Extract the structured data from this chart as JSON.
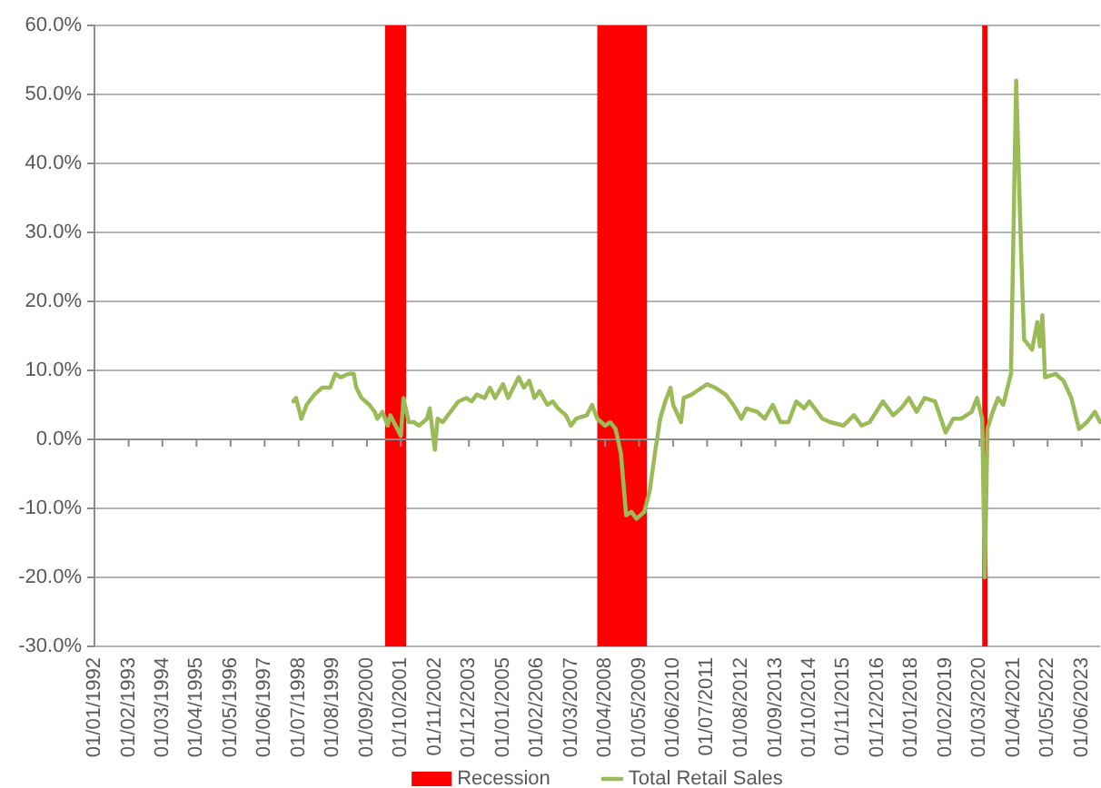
{
  "chart_data": {
    "type": "line",
    "x": [
      "1998-05",
      "1998-06",
      "1998-08",
      "1998-10",
      "1999-01",
      "1999-04",
      "1999-07",
      "1999-09",
      "1999-11",
      "2000-02",
      "2000-04",
      "2000-05",
      "2000-07",
      "2000-10",
      "2000-12",
      "2001-01",
      "2001-03",
      "2001-05",
      "2001-06",
      "2001-08",
      "2001-10",
      "2001-11",
      "2002-01",
      "2002-03",
      "2002-05",
      "2002-08",
      "2002-09",
      "2002-11",
      "2002-12",
      "2003-02",
      "2003-05",
      "2003-08",
      "2003-11",
      "2004-01",
      "2004-03",
      "2004-06",
      "2004-08",
      "2004-10",
      "2005-01",
      "2005-03",
      "2005-05",
      "2005-07",
      "2005-09",
      "2005-11",
      "2006-01",
      "2006-03",
      "2006-06",
      "2006-08",
      "2006-10",
      "2007-01",
      "2007-03",
      "2007-05",
      "2007-09",
      "2007-11",
      "2008-01",
      "2008-04",
      "2008-06",
      "2008-08",
      "2008-10",
      "2008-11",
      "2008-12",
      "2009-02",
      "2009-04",
      "2009-07",
      "2009-09",
      "2009-11",
      "2010-01",
      "2010-03",
      "2010-05",
      "2010-06",
      "2010-09",
      "2010-10",
      "2011-01",
      "2011-05",
      "2011-07",
      "2011-10",
      "2012-02",
      "2012-05",
      "2012-08",
      "2012-10",
      "2013-02",
      "2013-05",
      "2013-08",
      "2013-11",
      "2014-02",
      "2014-05",
      "2014-08",
      "2014-10",
      "2015-03",
      "2015-06",
      "2015-11",
      "2016-03",
      "2016-06",
      "2016-09",
      "2017-02",
      "2017-06",
      "2017-09",
      "2017-12",
      "2018-03",
      "2018-06",
      "2018-10",
      "2019-02",
      "2019-05",
      "2019-08",
      "2019-12",
      "2020-02",
      "2020-04",
      "2020-05",
      "2020-06",
      "2020-08",
      "2020-10",
      "2020-12",
      "2021-03",
      "2021-05",
      "2021-06",
      "2021-07",
      "2021-08",
      "2021-11",
      "2022-01",
      "2022-02",
      "2022-03",
      "2022-04",
      "2022-08",
      "2022-11",
      "2023-02",
      "2023-05",
      "2023-08",
      "2023-11",
      "2024-01"
    ],
    "series": [
      {
        "name": "Total Retail Sales",
        "color": "#9bbb59",
        "values": [
          5.5,
          6,
          3,
          5,
          6.5,
          7.5,
          7.5,
          9.5,
          9,
          9.5,
          9.5,
          7.5,
          6,
          5,
          4,
          3,
          4,
          2,
          3.5,
          2,
          0.5,
          6,
          2.5,
          2.5,
          2,
          3,
          4.5,
          -1.5,
          3,
          2.5,
          4,
          5.5,
          6,
          5.5,
          6.5,
          6,
          7.5,
          6,
          8,
          6,
          7.5,
          9,
          7.5,
          8.5,
          6,
          7,
          5,
          5.5,
          4.5,
          3.5,
          2,
          3,
          3.5,
          5,
          3,
          2,
          2.5,
          1.5,
          -2,
          -6.5,
          -11,
          -10.5,
          -11.5,
          -10.5,
          -7.5,
          -2,
          3,
          5.5,
          7.5,
          5,
          2.5,
          6,
          6.5,
          7.5,
          8,
          7.5,
          6.5,
          5,
          3,
          4.5,
          4,
          3,
          5,
          2.5,
          2.5,
          5.5,
          4.5,
          5.5,
          3,
          2.5,
          2,
          3.5,
          2,
          2.5,
          5.5,
          3.5,
          4.5,
          6,
          4,
          6,
          5.5,
          1,
          3,
          3,
          4,
          6,
          3,
          -20,
          1.5,
          4,
          6,
          5,
          9.5,
          52,
          38.5,
          25.5,
          14.5,
          13,
          17,
          13.5,
          18,
          9,
          9.5,
          8.5,
          6,
          1.5,
          2.5,
          4,
          2.5
        ]
      }
    ],
    "xlim": [
      "1992-01",
      "2024-01"
    ],
    "xticks": [
      {
        "value": "1992-01",
        "label": "01/01/1992"
      },
      {
        "value": "1993-02",
        "label": "01/02/1993"
      },
      {
        "value": "1994-03",
        "label": "01/03/1994"
      },
      {
        "value": "1995-04",
        "label": "01/04/1995"
      },
      {
        "value": "1996-05",
        "label": "01/05/1996"
      },
      {
        "value": "1997-06",
        "label": "01/06/1997"
      },
      {
        "value": "1998-07",
        "label": "01/07/1998"
      },
      {
        "value": "1999-08",
        "label": "01/08/1999"
      },
      {
        "value": "2000-09",
        "label": "01/09/2000"
      },
      {
        "value": "2001-10",
        "label": "01/10/2001"
      },
      {
        "value": "2002-11",
        "label": "01/11/2002"
      },
      {
        "value": "2003-12",
        "label": "01/12/2003"
      },
      {
        "value": "2005-01",
        "label": "01/01/2005"
      },
      {
        "value": "2006-02",
        "label": "01/02/2006"
      },
      {
        "value": "2007-03",
        "label": "01/03/2007"
      },
      {
        "value": "2008-04",
        "label": "01/04/2008"
      },
      {
        "value": "2009-05",
        "label": "01/05/2009"
      },
      {
        "value": "2010-06",
        "label": "01/06/2010"
      },
      {
        "value": "2011-07",
        "label": "01/07/2011"
      },
      {
        "value": "2012-08",
        "label": "01/08/2012"
      },
      {
        "value": "2013-09",
        "label": "01/09/2013"
      },
      {
        "value": "2014-10",
        "label": "01/10/2014"
      },
      {
        "value": "2015-11",
        "label": "01/11/2015"
      },
      {
        "value": "2016-12",
        "label": "01/12/2016"
      },
      {
        "value": "2018-01",
        "label": "01/01/2018"
      },
      {
        "value": "2019-02",
        "label": "01/02/2019"
      },
      {
        "value": "2020-03",
        "label": "01/03/2020"
      },
      {
        "value": "2021-04",
        "label": "01/04/2021"
      },
      {
        "value": "2022-05",
        "label": "01/05/2022"
      },
      {
        "value": "2023-06",
        "label": "01/06/2023"
      }
    ],
    "ylim": [
      -30,
      60
    ],
    "yticks": [
      {
        "value": -30,
        "label": "-30.0%"
      },
      {
        "value": -20,
        "label": "-20.0%"
      },
      {
        "value": -10,
        "label": "-10.0%"
      },
      {
        "value": 0,
        "label": "0.0%"
      },
      {
        "value": 10,
        "label": "10.0%"
      },
      {
        "value": 20,
        "label": "20.0%"
      },
      {
        "value": 30,
        "label": "30.0%"
      },
      {
        "value": 40,
        "label": "40.0%"
      },
      {
        "value": 50,
        "label": "50.0%"
      },
      {
        "value": 60,
        "label": "60.0%"
      }
    ],
    "bands": [
      {
        "axis": "x",
        "from": "2001-04",
        "to": "2001-12",
        "label": "Recession",
        "color": "#ff0000"
      },
      {
        "axis": "x",
        "from": "2008-01",
        "to": "2009-08",
        "color": "#ff0000"
      },
      {
        "axis": "x",
        "from": "2020-04",
        "to": "2020-06",
        "color": "#ff0000"
      }
    ],
    "grid": "y",
    "legend": "bottom"
  }
}
